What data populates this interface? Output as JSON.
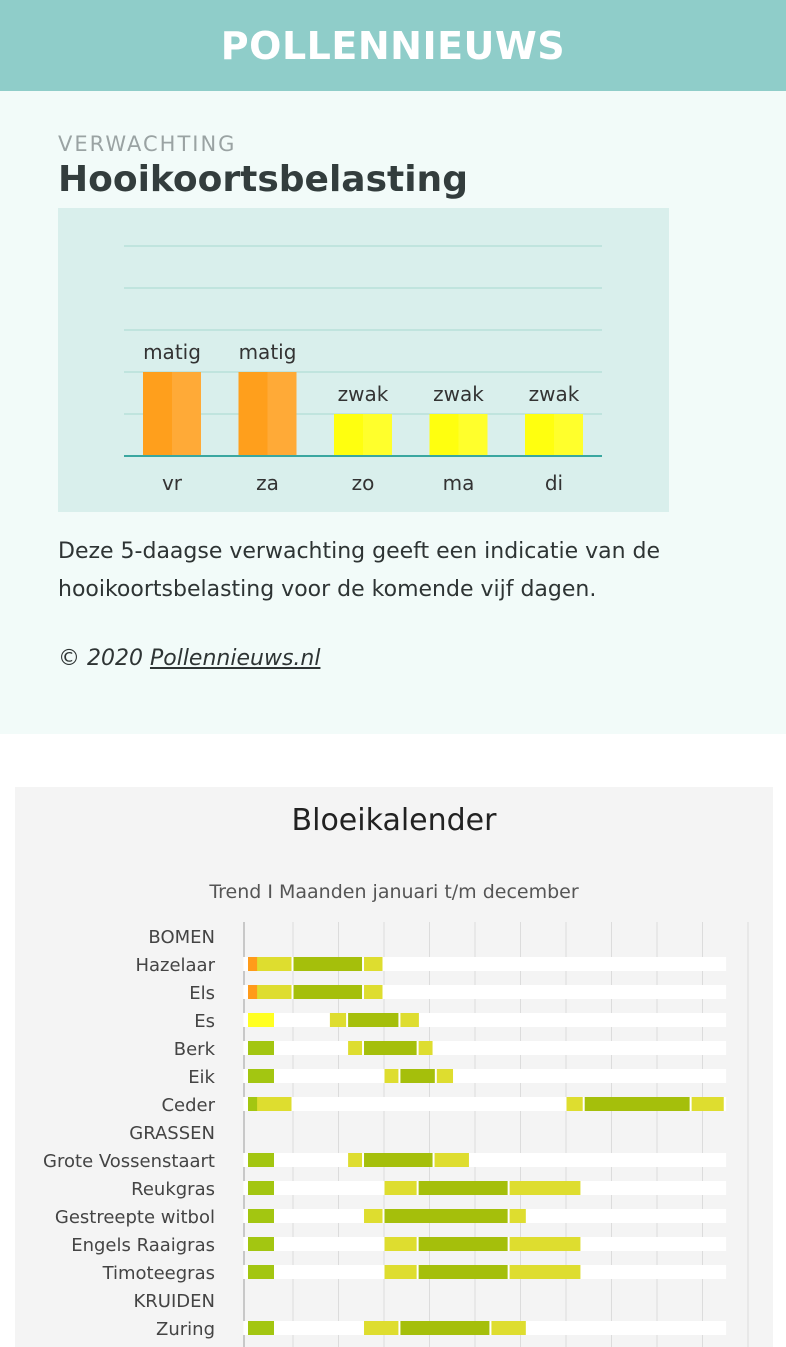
{
  "header": {
    "title": "POLLENNIEUWS"
  },
  "forecast": {
    "eyebrow": "VERWACHTING",
    "heading": "Hooikoortsbelasting",
    "description": "Deze 5-daagse verwachting geeft een indicatie van de hooikoortsbelasting voor de komende vijf dagen.",
    "copyright_prefix": "© 2020 ",
    "copyright_link": "Pollennieuws.nl"
  },
  "bloeikalender": {
    "title": "Bloeikalender",
    "subtitle": "Trend I Maanden januari t/m december"
  },
  "colors": {
    "matig": "#ff9f1c",
    "zwak": "#ffff0f",
    "legend_orange": "#ff9b1a",
    "legend_yellow": "#ffff22",
    "legend_green": "#a3c611",
    "light_bar": "#dedd2f",
    "dark_bar": "#a5bf0b"
  },
  "chart_data": [
    {
      "type": "bar",
      "categories": [
        "vr",
        "za",
        "zo",
        "ma",
        "di"
      ],
      "values": [
        2,
        2,
        1,
        1,
        1
      ],
      "data_labels": [
        "matig",
        "matig",
        "zwak",
        "zwak",
        "zwak"
      ],
      "ylim": [
        0,
        5
      ],
      "grid": true
    },
    {
      "type": "gantt",
      "title": "Bloeikalender",
      "subtitle": "Trend I Maanden januari t/m december",
      "x_unit": "month",
      "xlim": [
        1,
        13
      ],
      "rows": [
        {
          "label": "BOMEN",
          "header": true
        },
        {
          "label": "Hazelaar",
          "legend": "orange",
          "segments": [
            [
              1.2,
              2.0,
              "light"
            ],
            [
              2.0,
              3.55,
              "dark"
            ],
            [
              3.55,
              4.0,
              "light"
            ]
          ]
        },
        {
          "label": "Els",
          "legend": "orange",
          "segments": [
            [
              1.2,
              2.0,
              "light"
            ],
            [
              2.0,
              3.55,
              "dark"
            ],
            [
              3.55,
              4.0,
              "light"
            ]
          ]
        },
        {
          "label": "Es",
          "legend": "yellow",
          "segments": [
            [
              2.8,
              3.2,
              "light"
            ],
            [
              3.2,
              4.35,
              "dark"
            ],
            [
              4.35,
              4.8,
              "light"
            ]
          ]
        },
        {
          "label": "Berk",
          "legend": "green",
          "segments": [
            [
              3.2,
              3.55,
              "light"
            ],
            [
              3.55,
              4.75,
              "dark"
            ],
            [
              4.75,
              5.1,
              "light"
            ]
          ]
        },
        {
          "label": "Eik",
          "legend": "green",
          "segments": [
            [
              4.0,
              4.35,
              "light"
            ],
            [
              4.35,
              5.15,
              "dark"
            ],
            [
              5.15,
              5.55,
              "light"
            ]
          ]
        },
        {
          "label": "Ceder",
          "legend": "green",
          "segments": [
            [
              1.2,
              2.0,
              "light"
            ],
            [
              8.0,
              8.4,
              "light"
            ],
            [
              8.4,
              10.75,
              "dark"
            ],
            [
              10.75,
              11.5,
              "light"
            ]
          ]
        },
        {
          "label": "GRASSEN",
          "header": true
        },
        {
          "label": "Grote Vossenstaart",
          "legend": "green",
          "segments": [
            [
              3.2,
              3.55,
              "light"
            ],
            [
              3.55,
              5.1,
              "dark"
            ],
            [
              5.1,
              5.9,
              "light"
            ]
          ]
        },
        {
          "label": "Reukgras",
          "legend": "green",
          "segments": [
            [
              4.0,
              4.75,
              "light"
            ],
            [
              4.75,
              6.75,
              "dark"
            ],
            [
              6.75,
              8.35,
              "light"
            ]
          ]
        },
        {
          "label": "Gestreepte witbol",
          "legend": "green",
          "segments": [
            [
              3.55,
              4.0,
              "light"
            ],
            [
              4.0,
              6.75,
              "dark"
            ],
            [
              6.75,
              7.15,
              "light"
            ]
          ]
        },
        {
          "label": "Engels Raaigras",
          "legend": "green",
          "segments": [
            [
              4.0,
              4.75,
              "light"
            ],
            [
              4.75,
              6.75,
              "dark"
            ],
            [
              6.75,
              8.35,
              "light"
            ]
          ]
        },
        {
          "label": "Timoteegras",
          "legend": "green",
          "segments": [
            [
              4.0,
              4.75,
              "light"
            ],
            [
              4.75,
              6.75,
              "dark"
            ],
            [
              6.75,
              8.35,
              "light"
            ]
          ]
        },
        {
          "label": "KRUIDEN",
          "header": true
        },
        {
          "label": "Zuring",
          "legend": "green",
          "segments": [
            [
              3.55,
              4.35,
              "light"
            ],
            [
              4.35,
              6.35,
              "dark"
            ],
            [
              6.35,
              7.15,
              "light"
            ]
          ]
        }
      ]
    }
  ]
}
